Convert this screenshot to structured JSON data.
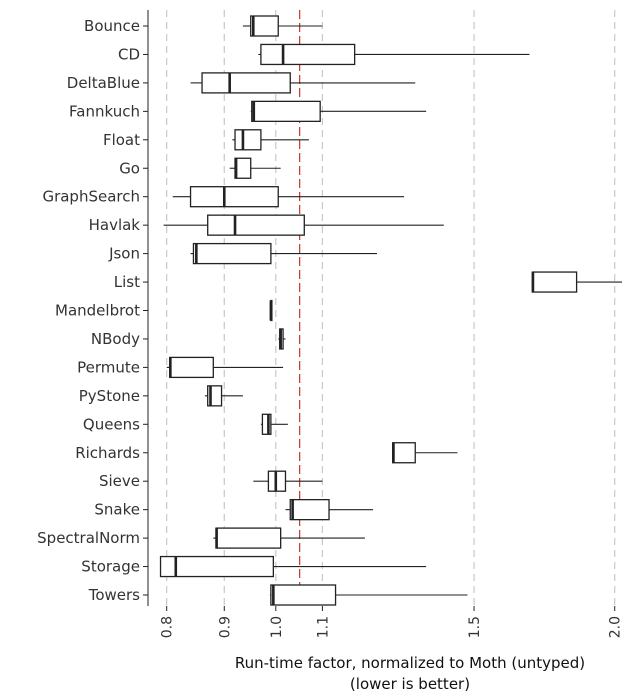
{
  "chart_data": {
    "type": "boxplot",
    "orientation": "horizontal",
    "scale": "log",
    "xlabel": "Run-time factor, normalized to Moth (untyped)",
    "xlabel_note": "(lower is better)",
    "x_ticks": [
      "0.8",
      "0.9",
      "1.0",
      "1.1",
      "1.5",
      "2.0"
    ],
    "x_tick_values": [
      0.8,
      0.9,
      1.0,
      1.1,
      1.5,
      2.0
    ],
    "xlim": [
      0.77,
      2.03
    ],
    "reference_line": 1.05,
    "grid": "vertical dashed at ticks",
    "legend": "none",
    "colors": {
      "box_stroke": "#222222",
      "grid": "#c8c8c8",
      "reference": "#c0392b"
    },
    "categories": [
      "Bounce",
      "CD",
      "DeltaBlue",
      "Fannkuch",
      "Float",
      "Go",
      "GraphSearch",
      "Havlak",
      "Json",
      "List",
      "Mandelbrot",
      "NBody",
      "Permute",
      "PyStone",
      "Queens",
      "Richards",
      "Sieve",
      "Snake",
      "SpectralNorm",
      "Storage",
      "Towers"
    ],
    "boxes": [
      {
        "min": 0.935,
        "q1": 0.95,
        "median": 0.955,
        "q3": 1.005,
        "max": 1.1
      },
      {
        "min": 0.965,
        "q1": 0.97,
        "median": 1.015,
        "q3": 1.175,
        "max": 1.68
      },
      {
        "min": 0.84,
        "q1": 0.86,
        "median": 0.91,
        "q3": 1.03,
        "max": 1.33
      },
      {
        "min": 0.95,
        "q1": 0.952,
        "median": 0.956,
        "q3": 1.095,
        "max": 1.36
      },
      {
        "min": 0.915,
        "q1": 0.92,
        "median": 0.935,
        "q3": 0.97,
        "max": 1.07
      },
      {
        "min": 0.91,
        "q1": 0.92,
        "median": 0.922,
        "q3": 0.95,
        "max": 1.01
      },
      {
        "min": 0.81,
        "q1": 0.84,
        "median": 0.9,
        "q3": 1.005,
        "max": 1.3
      },
      {
        "min": 0.795,
        "q1": 0.87,
        "median": 0.92,
        "q3": 1.06,
        "max": 1.41
      },
      {
        "min": 0.84,
        "q1": 0.845,
        "median": 0.85,
        "q3": 0.99,
        "max": 1.23
      },
      {
        "min": 1.69,
        "q1": 1.69,
        "median": 1.692,
        "q3": 1.85,
        "max": 2.03
      },
      {
        "min": 0.99,
        "q1": 0.99,
        "median": 0.99,
        "q3": 0.992,
        "max": 0.992
      },
      {
        "min": 1.005,
        "q1": 1.008,
        "median": 1.01,
        "q3": 1.015,
        "max": 1.02
      },
      {
        "min": 0.8,
        "q1": 0.805,
        "median": 0.806,
        "q3": 0.88,
        "max": 1.015
      },
      {
        "min": 0.865,
        "q1": 0.87,
        "median": 0.875,
        "q3": 0.895,
        "max": 0.935
      },
      {
        "min": 0.97,
        "q1": 0.973,
        "median": 0.985,
        "q3": 0.99,
        "max": 1.025
      },
      {
        "min": 1.27,
        "q1": 1.27,
        "median": 1.272,
        "q3": 1.33,
        "max": 1.45
      },
      {
        "min": 0.955,
        "q1": 0.985,
        "median": 1.0,
        "q3": 1.02,
        "max": 1.1
      },
      {
        "min": 1.02,
        "q1": 1.03,
        "median": 1.035,
        "q3": 1.115,
        "max": 1.22
      },
      {
        "min": 0.88,
        "q1": 0.885,
        "median": 0.886,
        "q3": 1.01,
        "max": 1.2
      },
      {
        "min": 0.79,
        "q1": 0.79,
        "median": 0.815,
        "q3": 0.995,
        "max": 1.36
      },
      {
        "min": 0.988,
        "q1": 0.99,
        "median": 0.995,
        "q3": 1.13,
        "max": 1.48
      }
    ]
  }
}
